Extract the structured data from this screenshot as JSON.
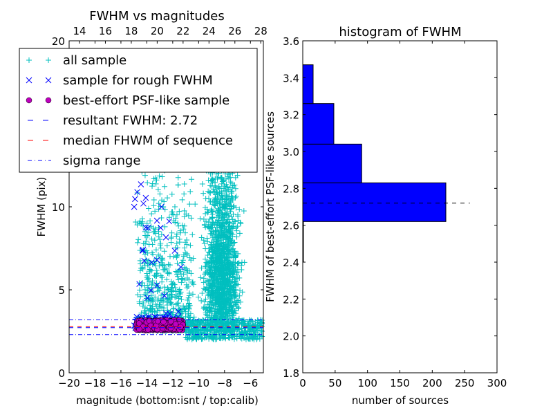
{
  "chart_data": [
    {
      "type": "scatter",
      "title": "FWHM vs magnitudes",
      "xlabel": "magnitude (bottom:isnt / top:calib)",
      "ylabel": "FWHM (pix)",
      "xlim": [
        -20,
        -5
      ],
      "ylim": [
        0,
        20
      ],
      "xticks": [
        "−20",
        "−18",
        "−16",
        "−14",
        "−12",
        "−10",
        "−8",
        "−6"
      ],
      "xtick_values": [
        -20,
        -18,
        -16,
        -14,
        -12,
        -10,
        -8,
        -6
      ],
      "top_xticks": [
        "14",
        "16",
        "18",
        "20",
        "22",
        "24",
        "26",
        "28"
      ],
      "top_xtick_values": [
        14,
        16,
        18,
        20,
        22,
        24,
        26,
        28
      ],
      "top_offset": 33.2,
      "yticks": [
        "0",
        "5",
        "10"
      ],
      "ytick_values": [
        0,
        5,
        10
      ],
      "legend": {
        "placement": "upper-left",
        "entries": [
          {
            "label": "all sample",
            "marker": "+",
            "color": "#00bfbf"
          },
          {
            "label": "sample for rough FWHM",
            "marker": "x",
            "color": "#0000ff"
          },
          {
            "label": "best-effort PSF-like sample",
            "marker": "o",
            "color": "#bf00bf"
          },
          {
            "label": "resultant FWHM: 2.72",
            "marker": "dashed",
            "color": "#0000ff"
          },
          {
            "label": "median FHWM of sequence",
            "marker": "dashed",
            "color": "#ff0000"
          },
          {
            "label": "sigma range",
            "marker": "dashdot",
            "color": "#0000ff"
          }
        ]
      },
      "hlines": {
        "resultant": 2.72,
        "median": 2.78,
        "sigma_low": 2.3,
        "sigma_high": 3.2
      },
      "series_clusters": [
        {
          "name": "all sample",
          "x_range": [
            -15,
            -5
          ],
          "y_range": [
            1.8,
            20
          ],
          "count": 2600
        },
        {
          "name": "sample for rough FWHM",
          "x_range": [
            -15.2,
            -11.2
          ],
          "y_range": [
            2.5,
            12
          ],
          "count": 110
        },
        {
          "name": "best-effort PSF-like sample",
          "x_range": [
            -14.8,
            -11.2
          ],
          "y_range": [
            2.5,
            3.2
          ],
          "count": 380
        }
      ]
    },
    {
      "type": "bar",
      "orientation": "horizontal",
      "title": "histogram of FWHM",
      "xlabel": "number of sources",
      "ylabel": "FWHM of best-effort PSF-like sources",
      "xlim": [
        0,
        300
      ],
      "ylim": [
        1.8,
        3.6
      ],
      "xticks": [
        "0",
        "50",
        "100",
        "150",
        "200",
        "250",
        "300"
      ],
      "xtick_values": [
        0,
        50,
        100,
        150,
        200,
        250,
        300
      ],
      "yticks": [
        "1.8",
        "2.0",
        "2.2",
        "2.4",
        "2.6",
        "2.8",
        "3.0",
        "3.2",
        "3.4",
        "3.6"
      ],
      "ytick_values": [
        1.8,
        2.0,
        2.2,
        2.4,
        2.6,
        2.8,
        3.0,
        3.2,
        3.4,
        3.6
      ],
      "bins": [
        {
          "from": 2.4,
          "to": 2.62,
          "count": 1
        },
        {
          "from": 2.62,
          "to": 2.83,
          "count": 221
        },
        {
          "from": 2.83,
          "to": 3.04,
          "count": 91
        },
        {
          "from": 3.04,
          "to": 3.26,
          "count": 48
        },
        {
          "from": 3.26,
          "to": 3.47,
          "count": 16
        }
      ],
      "bar_color": "#0000ff",
      "dashed_line": {
        "y": 2.72,
        "x_extent": 258
      }
    }
  ]
}
